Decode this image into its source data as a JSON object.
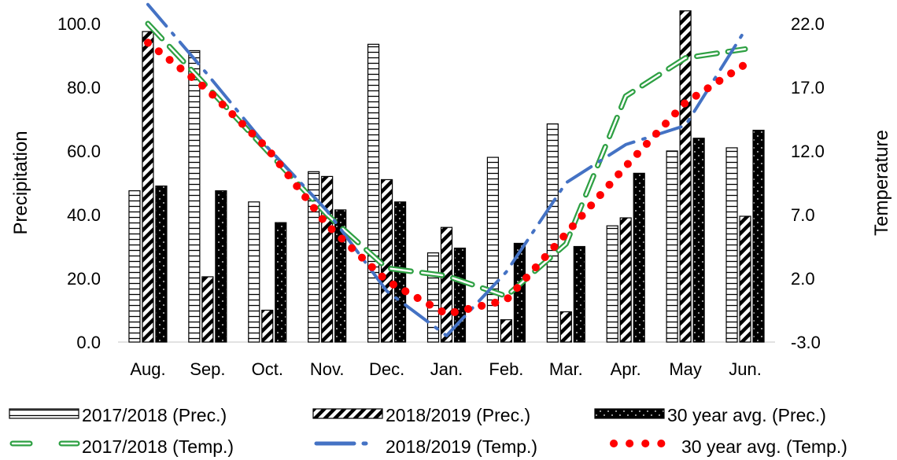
{
  "chart_data": {
    "type": "bar+line",
    "categories": [
      "Aug.",
      "Sep.",
      "Oct.",
      "Nov.",
      "Dec.",
      "Jan.",
      "Feb.",
      "Mar.",
      "Apr.",
      "May",
      "Jun."
    ],
    "y_left": {
      "label": "Precipitation",
      "min": 0,
      "max": 100,
      "ticks": [
        "0.0",
        "20.0",
        "40.0",
        "60.0",
        "80.0",
        "100.0"
      ]
    },
    "y_right": {
      "label": "Temperature",
      "min": -3,
      "max": 22,
      "ticks": [
        "-3.0",
        "2.0",
        "7.0",
        "12.0",
        "17.0",
        "22.0"
      ]
    },
    "bar_series": [
      {
        "name": "2017/2018 (Prec.)",
        "pattern": "horizontal-lines",
        "values": [
          47.5,
          91.5,
          44.0,
          53.5,
          93.5,
          28.0,
          58.0,
          68.5,
          36.5,
          60.0,
          61.0
        ]
      },
      {
        "name": "2018/2019 (Prec.)",
        "pattern": "diagonal-hatch",
        "values": [
          97.5,
          20.5,
          10.0,
          52.0,
          51.0,
          36.0,
          7.0,
          9.5,
          39.0,
          104.0,
          39.5
        ]
      },
      {
        "name": "30 year avg. (Prec.)",
        "pattern": "black-dotted",
        "values": [
          49.0,
          47.5,
          37.5,
          41.5,
          44.0,
          29.5,
          31.0,
          30.0,
          53.0,
          64.0,
          66.5
        ]
      }
    ],
    "line_series": [
      {
        "name": "2017/2018 (Temp.)",
        "style": "green-double-dashed",
        "color": "#2ea043",
        "values": [
          22.0,
          17.0,
          12.0,
          7.0,
          2.8,
          2.2,
          0.6,
          4.7,
          16.3,
          19.3,
          20.0
        ]
      },
      {
        "name": "2018/2019 (Temp.)",
        "style": "blue-dash-dot",
        "color": "#4472C4",
        "values": [
          23.5,
          18.0,
          12.3,
          7.3,
          1.0,
          -2.5,
          2.5,
          9.5,
          12.5,
          14.0,
          21.5
        ]
      },
      {
        "name": "30 year avg. (Temp.)",
        "style": "red-dotted",
        "color": "#ff0000",
        "values": [
          20.5,
          16.8,
          12.2,
          6.2,
          1.8,
          -0.8,
          0.3,
          5.5,
          10.8,
          15.8,
          18.8
        ]
      }
    ]
  }
}
